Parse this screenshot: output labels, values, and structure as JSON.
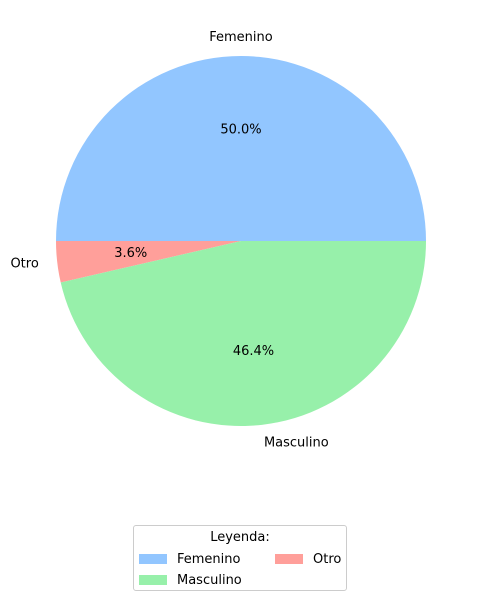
{
  "chart_data": {
    "type": "pie",
    "slices": [
      {
        "label": "Femenino",
        "pct_label": "50.0%",
        "value": 50.0,
        "color": "#92c6ff"
      },
      {
        "label": "Otro",
        "pct_label": "3.6%",
        "value": 3.6,
        "color": "#ff9f9a"
      },
      {
        "label": "Masculino",
        "pct_label": "46.4%",
        "value": 46.4,
        "color": "#97f0aa"
      }
    ],
    "legend": {
      "title": "Leyenda:",
      "placement": "bottom-center",
      "columns": 2,
      "entries": [
        {
          "label": "Femenino",
          "color": "#92c6ff"
        },
        {
          "label": "Otro",
          "color": "#ff9f9a"
        },
        {
          "label": "Masculino",
          "color": "#97f0aa"
        }
      ]
    }
  }
}
